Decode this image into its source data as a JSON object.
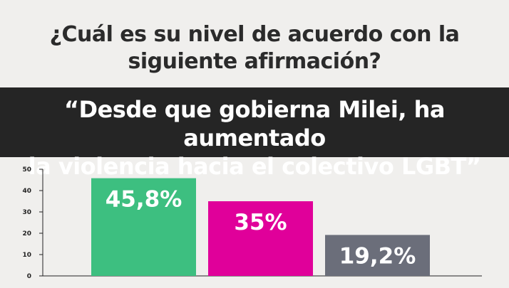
{
  "question": {
    "line1": "¿Cuál es su nivel de acuerdo con la",
    "line2": "siguiente afirmación?"
  },
  "statement": {
    "line1": "“Desde que gobierna Milei, ha aumentado",
    "line2": "la violencia hacia el colectivo LGBT”"
  },
  "chart_data": {
    "type": "bar",
    "title": "",
    "xlabel": "",
    "ylabel": "",
    "ylim": [
      0,
      50
    ],
    "yticks": [
      "0",
      "10",
      "20",
      "30",
      "40",
      "50"
    ],
    "grid": false,
    "values": [
      45.8,
      35,
      19.2
    ],
    "labels": [
      "45,8%",
      "35%",
      "19,2%"
    ],
    "colors": [
      "#3dbf80",
      "#e0009a",
      "#6b6e7a"
    ]
  }
}
